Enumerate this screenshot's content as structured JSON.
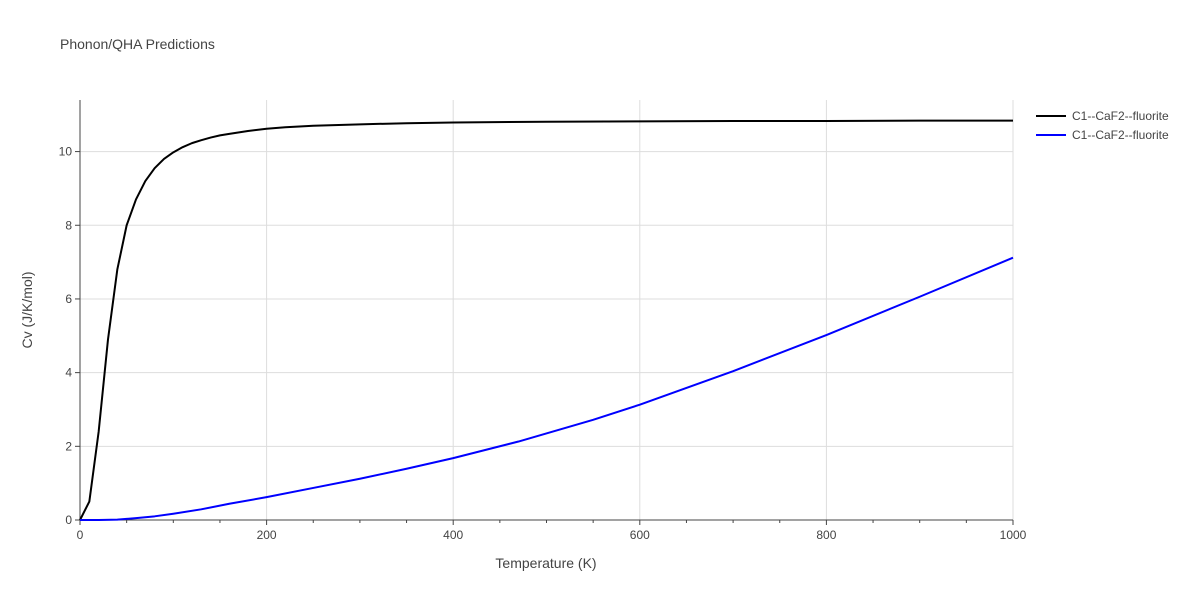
{
  "chart_data": {
    "type": "line",
    "title": "Phonon/QHA Predictions",
    "xlabel": "Temperature (K)",
    "ylabel": "Cv (J/K/mol)",
    "xlim": [
      0,
      1000
    ],
    "ylim": [
      0,
      11.4
    ],
    "xticks": [
      0,
      200,
      400,
      600,
      800,
      1000
    ],
    "yticks": [
      0,
      2,
      4,
      6,
      8,
      10
    ],
    "grid": true,
    "legend_position": "top-right",
    "series": [
      {
        "name": "C1--CaF2--fluorite",
        "color": "#000000",
        "x": [
          0,
          10,
          20,
          30,
          40,
          50,
          60,
          70,
          80,
          90,
          100,
          110,
          120,
          130,
          140,
          150,
          160,
          180,
          200,
          220,
          250,
          300,
          350,
          400,
          500,
          600,
          700,
          800,
          900,
          1000
        ],
        "y": [
          0,
          0.5,
          2.4,
          4.9,
          6.8,
          8.0,
          8.7,
          9.2,
          9.55,
          9.8,
          9.98,
          10.12,
          10.23,
          10.31,
          10.38,
          10.44,
          10.48,
          10.56,
          10.62,
          10.66,
          10.7,
          10.74,
          10.77,
          10.79,
          10.81,
          10.82,
          10.83,
          10.83,
          10.84,
          10.84
        ]
      },
      {
        "name": "C1--CaF2--fluorite",
        "color": "#0000ff",
        "x": [
          0,
          20,
          40,
          60,
          80,
          100,
          130,
          160,
          200,
          250,
          300,
          350,
          400,
          470,
          550,
          600,
          700,
          800,
          900,
          1000
        ],
        "y": [
          0,
          0,
          0.01,
          0.05,
          0.1,
          0.17,
          0.29,
          0.44,
          0.62,
          0.87,
          1.12,
          1.39,
          1.68,
          2.13,
          2.72,
          3.13,
          4.04,
          5.02,
          6.06,
          7.12
        ]
      }
    ]
  }
}
